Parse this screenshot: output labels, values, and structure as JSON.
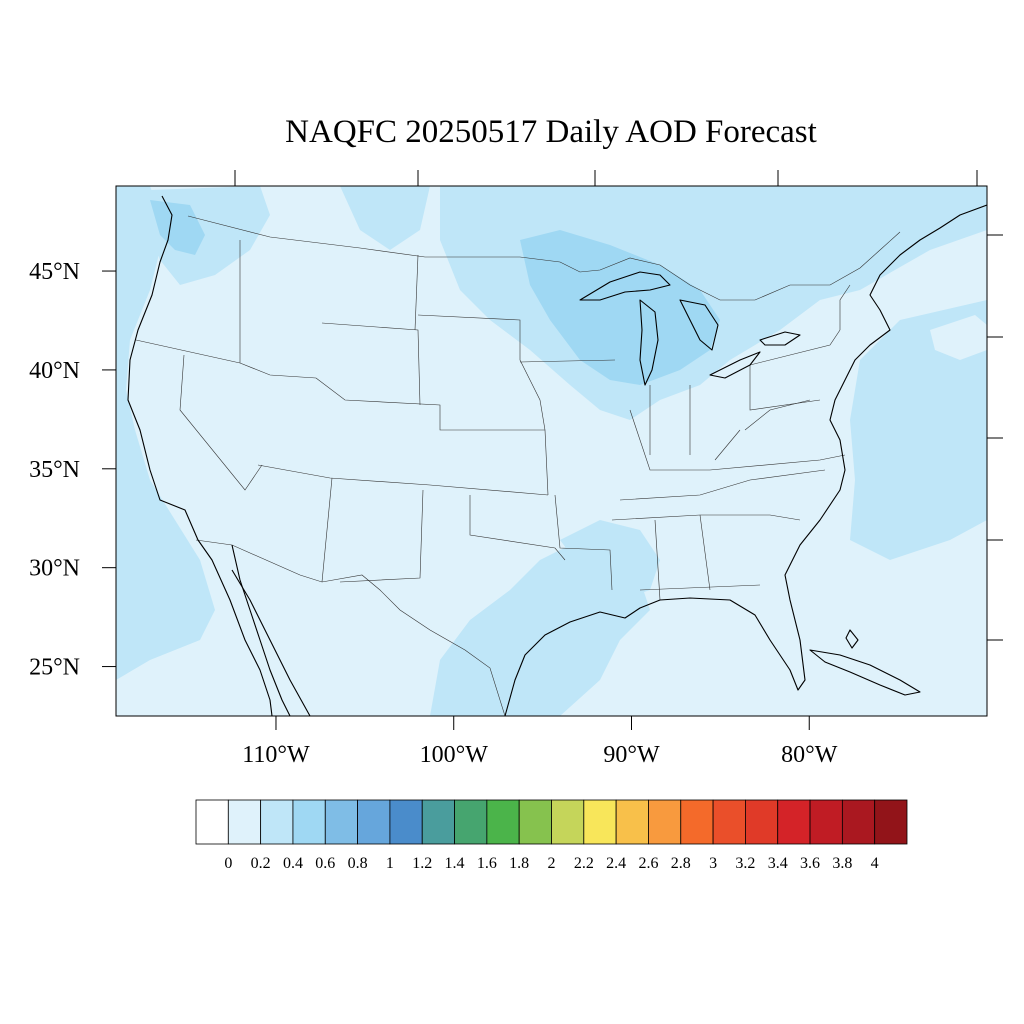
{
  "title": "NAQFC 20250517 Daily AOD Forecast",
  "map": {
    "lon_range": [
      -119,
      -70
    ],
    "lat_range": [
      22.5,
      49.3
    ],
    "lon_ticks": [
      {
        "value": -110,
        "label": "110°W"
      },
      {
        "value": -100,
        "label": "100°W"
      },
      {
        "value": -90,
        "label": "90°W"
      },
      {
        "value": -80,
        "label": "80°W"
      }
    ],
    "lat_ticks": [
      {
        "value": 45,
        "label": "45°N"
      },
      {
        "value": 40,
        "label": "40°N"
      },
      {
        "value": 35,
        "label": "35°N"
      },
      {
        "value": 30,
        "label": "30°N"
      },
      {
        "value": 25,
        "label": "25°N"
      }
    ],
    "base_color": "#dff2fb"
  },
  "colorbar": {
    "colors": [
      "#ffffff",
      "#dff2fb",
      "#bfe6f8",
      "#9fd8f3",
      "#7fbde6",
      "#66a6dc",
      "#4a8ccb",
      "#4a9d9d",
      "#46a56f",
      "#4bb44a",
      "#86c24e",
      "#c5d55a",
      "#f8e65a",
      "#f8c04a",
      "#f89a3e",
      "#f46a2a",
      "#ea4f2a",
      "#e03a28",
      "#d42328",
      "#c01c24",
      "#aa1820",
      "#921419"
    ],
    "labels": [
      "0",
      "0.2",
      "0.4",
      "0.6",
      "0.8",
      "1",
      "1.2",
      "1.4",
      "1.6",
      "1.8",
      "2",
      "2.2",
      "2.4",
      "2.6",
      "2.8",
      "3",
      "3.2",
      "3.4",
      "3.6",
      "3.8",
      "4"
    ]
  }
}
